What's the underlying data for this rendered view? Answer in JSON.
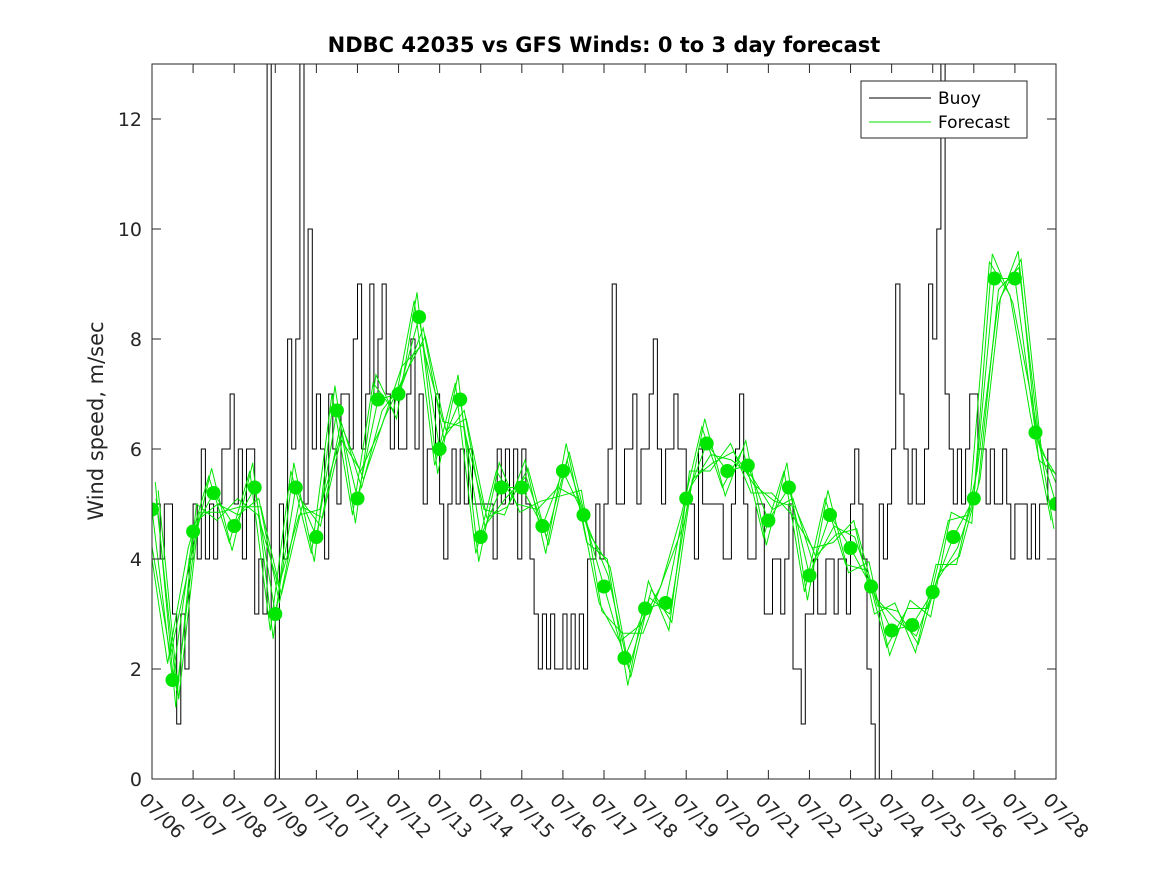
{
  "chart_data": {
    "type": "line",
    "title": "NDBC 42035 vs GFS Winds: 0 to 3 day forecast",
    "xlabel": "",
    "ylabel": "Wind speed, m/sec",
    "xlim": [
      "07/06",
      "07/28"
    ],
    "ylim": [
      0,
      13
    ],
    "x_ticks": [
      "07/06",
      "07/07",
      "07/08",
      "07/09",
      "07/10",
      "07/11",
      "07/12",
      "07/13",
      "07/14",
      "07/15",
      "07/16",
      "07/17",
      "07/18",
      "07/19",
      "07/20",
      "07/21",
      "07/22",
      "07/23",
      "07/24",
      "07/25",
      "07/26",
      "07/27",
      "07/28"
    ],
    "y_ticks": [
      "0",
      "2",
      "4",
      "6",
      "8",
      "10",
      "12"
    ],
    "grid": false,
    "legend": {
      "position": "top-right",
      "entries": [
        "Buoy",
        "Forecast"
      ]
    },
    "colors": {
      "buoy": "#000000",
      "forecast": "#00e600"
    },
    "series": [
      {
        "name": "Buoy",
        "x": [
          0.0,
          0.1,
          0.2,
          0.3,
          0.4,
          0.5,
          0.6,
          0.7,
          0.8,
          0.9,
          1.0,
          1.1,
          1.2,
          1.3,
          1.4,
          1.5,
          1.6,
          1.7,
          1.8,
          1.9,
          2.0,
          2.1,
          2.2,
          2.3,
          2.4,
          2.5,
          2.6,
          2.7,
          2.8,
          2.9,
          3.0,
          3.1,
          3.2,
          3.3,
          3.4,
          3.5,
          3.6,
          3.7,
          3.8,
          3.9,
          4.0,
          4.1,
          4.2,
          4.3,
          4.4,
          4.5,
          4.6,
          4.7,
          4.8,
          4.9,
          5.0,
          5.1,
          5.2,
          5.3,
          5.4,
          5.5,
          5.6,
          5.7,
          5.8,
          5.9,
          6.0,
          6.1,
          6.2,
          6.3,
          6.4,
          6.5,
          6.6,
          6.7,
          6.8,
          6.9,
          7.0,
          7.1,
          7.2,
          7.3,
          7.4,
          7.5,
          7.6,
          7.7,
          7.8,
          7.9,
          8.0,
          8.1,
          8.2,
          8.3,
          8.4,
          8.5,
          8.6,
          8.7,
          8.8,
          8.9,
          9.0,
          9.1,
          9.2,
          9.3,
          9.4,
          9.5,
          9.6,
          9.7,
          9.8,
          9.9,
          10.0,
          10.1,
          10.2,
          10.3,
          10.4,
          10.5,
          10.6,
          10.7,
          10.8,
          10.9,
          11.0,
          11.1,
          11.2,
          11.3,
          11.4,
          11.5,
          11.6,
          11.7,
          11.8,
          11.9,
          12.0,
          12.1,
          12.2,
          12.3,
          12.4,
          12.5,
          12.6,
          12.7,
          12.8,
          12.9,
          13.0,
          13.1,
          13.2,
          13.3,
          13.4,
          13.5,
          13.6,
          13.7,
          13.8,
          13.9,
          14.0,
          14.1,
          14.2,
          14.3,
          14.4,
          14.5,
          14.6,
          14.7,
          14.8,
          14.9,
          15.0,
          15.1,
          15.2,
          15.3,
          15.4,
          15.5,
          15.6,
          15.7,
          15.8,
          15.9,
          16.0,
          16.1,
          16.2,
          16.3,
          16.4,
          16.5,
          16.6,
          16.7,
          16.8,
          16.9,
          17.0,
          17.1,
          17.2,
          17.3,
          17.4,
          17.5,
          17.6,
          17.7,
          17.8,
          17.9,
          18.0,
          18.1,
          18.2,
          18.3,
          18.4,
          18.5,
          18.6,
          18.7,
          18.8,
          18.9,
          19.0,
          19.1,
          19.2,
          19.3,
          19.4,
          19.5,
          19.6,
          19.7,
          19.8,
          19.9,
          20.0,
          20.1,
          20.2,
          20.3,
          20.4,
          20.5,
          20.6,
          20.7,
          20.8,
          20.9,
          21.0,
          21.1,
          21.2,
          21.3,
          21.4,
          21.5,
          21.6,
          21.7,
          21.8,
          21.9,
          22.0
        ],
        "values": [
          5,
          5,
          4,
          5,
          5,
          3,
          1,
          3,
          2,
          4,
          5,
          4,
          6,
          4,
          5,
          4,
          5,
          6,
          6,
          7,
          5,
          6,
          4,
          6,
          6,
          3,
          4,
          3,
          13,
          3,
          0,
          5,
          4,
          8,
          6,
          8,
          13,
          5,
          10,
          6,
          7,
          6,
          4,
          7,
          6,
          5,
          7,
          7,
          6,
          8,
          9,
          6,
          7,
          9,
          7,
          8,
          9,
          7,
          6,
          7,
          6,
          6,
          7,
          8,
          6,
          7,
          5,
          6,
          6,
          7,
          5,
          4,
          5,
          6,
          5,
          6,
          5,
          6,
          5,
          5,
          5,
          5,
          5,
          4,
          6,
          5,
          6,
          5,
          6,
          4,
          6,
          5,
          4,
          3,
          2,
          3,
          2,
          3,
          2,
          2,
          3,
          2,
          3,
          2,
          3,
          2,
          4,
          4,
          5,
          4,
          5,
          6,
          9,
          5,
          5,
          6,
          6,
          7,
          5,
          6,
          6,
          7,
          8,
          6,
          5,
          6,
          6,
          7,
          6,
          6,
          5,
          5,
          4,
          6,
          5,
          5,
          5,
          5,
          5,
          4,
          4,
          5,
          6,
          7,
          5,
          4,
          4,
          5,
          5,
          3,
          3,
          4,
          4,
          3,
          4,
          5,
          2,
          2,
          1,
          3,
          3,
          4,
          3,
          3,
          4,
          4,
          3,
          4,
          4,
          3,
          5,
          6,
          5,
          4,
          2,
          1,
          0,
          5,
          4,
          5,
          6,
          9,
          7,
          6,
          5,
          6,
          5,
          5,
          6,
          9,
          8,
          10,
          13,
          7,
          6,
          5,
          6,
          5,
          6,
          7,
          7,
          6,
          6,
          5,
          6,
          5,
          5,
          6,
          5,
          4,
          5,
          5,
          5,
          4,
          5,
          4,
          5,
          5,
          6,
          6,
          5
        ]
      },
      {
        "name": "Forecast",
        "x": [
          0,
          0.5,
          1,
          1.5,
          2,
          2.5,
          3,
          3.5,
          4,
          4.5,
          5,
          5.5,
          6,
          6.5,
          7,
          7.5,
          8,
          8.5,
          9,
          9.5,
          10,
          10.5,
          11,
          11.5,
          12,
          12.5,
          13,
          13.5,
          14,
          14.5,
          15,
          15.5,
          16,
          16.5,
          17,
          17.5,
          18,
          18.5,
          19,
          19.5,
          20,
          20.5,
          21,
          21.5,
          22
        ],
        "values": [
          4.9,
          1.8,
          4.5,
          5.2,
          4.6,
          5.3,
          3.0,
          5.3,
          4.4,
          6.7,
          5.1,
          6.9,
          7.0,
          8.4,
          6.0,
          6.9,
          4.4,
          5.3,
          5.3,
          4.6,
          5.6,
          4.8,
          3.5,
          2.2,
          3.1,
          3.2,
          5.1,
          6.1,
          5.6,
          5.7,
          4.7,
          5.3,
          3.7,
          4.8,
          4.2,
          3.5,
          2.7,
          2.8,
          3.4,
          4.4,
          5.1,
          9.1,
          9.1,
          6.3,
          5.0
        ]
      }
    ]
  }
}
